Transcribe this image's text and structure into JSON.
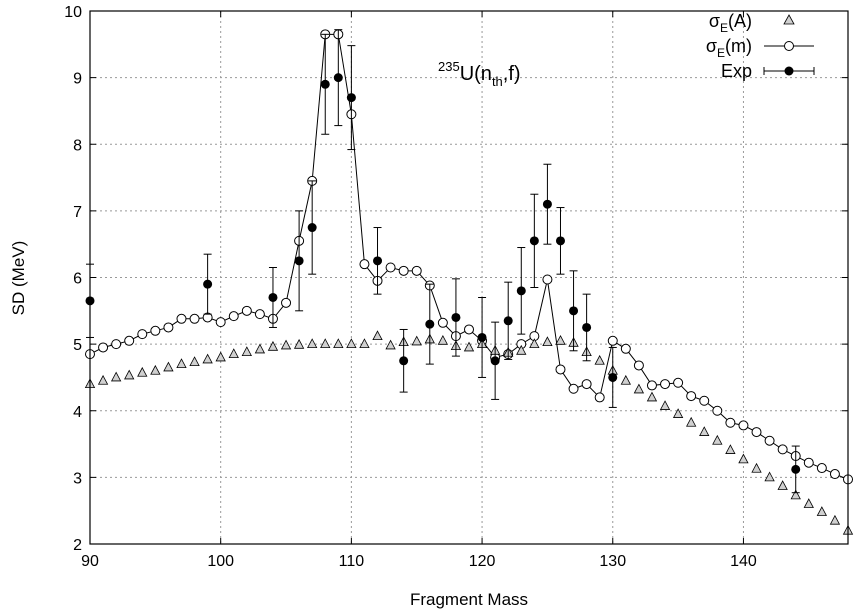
{
  "chart_data": {
    "type": "scatter",
    "xlabel": "Fragment Mass",
    "ylabel": "SD (MeV)",
    "xlim": [
      90,
      148
    ],
    "ylim": [
      2,
      10
    ],
    "x_ticks": [
      90,
      100,
      110,
      120,
      130,
      140
    ],
    "y_ticks": [
      2,
      3,
      4,
      5,
      6,
      7,
      8,
      9,
      10
    ],
    "grid": true,
    "legend_position": "top-right",
    "annotation": {
      "sup": "235",
      "base": "U(n",
      "sub": "th",
      "tail": ",f)"
    },
    "series": [
      {
        "name": "σE(A)",
        "legend": {
          "base": "σ",
          "sub": "E",
          "tail": "(A)"
        },
        "marker": "triangle",
        "color": "#888888",
        "line": false,
        "x": [
          90,
          91,
          92,
          93,
          94,
          95,
          96,
          97,
          98,
          99,
          100,
          101,
          102,
          103,
          104,
          105,
          106,
          107,
          108,
          109,
          110,
          111,
          112,
          113,
          114,
          115,
          116,
          117,
          118,
          119,
          120,
          121,
          122,
          123,
          124,
          125,
          126,
          127,
          128,
          129,
          130,
          131,
          132,
          133,
          134,
          135,
          136,
          137,
          138,
          139,
          140,
          141,
          142,
          143,
          144,
          145,
          146,
          147,
          148
        ],
        "y": [
          4.4,
          4.45,
          4.5,
          4.53,
          4.57,
          4.6,
          4.65,
          4.7,
          4.73,
          4.77,
          4.8,
          4.85,
          4.88,
          4.92,
          4.96,
          4.98,
          4.99,
          5.0,
          5.0,
          5.0,
          5.0,
          5.0,
          5.12,
          4.98,
          5.03,
          5.04,
          5.07,
          5.05,
          4.97,
          4.95,
          5.0,
          4.9,
          4.87,
          4.9,
          5.0,
          5.03,
          5.05,
          5.02,
          4.88,
          4.75,
          4.6,
          4.45,
          4.32,
          4.2,
          4.07,
          3.95,
          3.82,
          3.68,
          3.55,
          3.41,
          3.27,
          3.13,
          3.0,
          2.87,
          2.73,
          2.6,
          2.48,
          2.35,
          2.2
        ]
      },
      {
        "name": "σE(m)",
        "legend": {
          "base": "σ",
          "sub": "E",
          "tail": "(m)"
        },
        "marker": "open-circle",
        "color": "#000000",
        "line": true,
        "x": [
          90,
          91,
          92,
          93,
          94,
          95,
          96,
          97,
          98,
          99,
          100,
          101,
          102,
          103,
          104,
          105,
          106,
          107,
          108,
          109,
          110,
          111,
          112,
          113,
          114,
          115,
          116,
          117,
          118,
          119,
          120,
          121,
          122,
          123,
          124,
          125,
          126,
          127,
          128,
          129,
          130,
          131,
          132,
          133,
          134,
          135,
          136,
          137,
          138,
          139,
          140,
          141,
          142,
          143,
          144,
          145,
          146,
          147,
          148
        ],
        "y": [
          4.85,
          4.95,
          5.0,
          5.05,
          5.15,
          5.2,
          5.25,
          5.38,
          5.38,
          5.4,
          5.33,
          5.42,
          5.5,
          5.45,
          5.38,
          5.62,
          6.55,
          7.45,
          9.65,
          9.65,
          8.45,
          6.2,
          5.95,
          6.15,
          6.1,
          6.1,
          5.88,
          5.32,
          5.12,
          5.22,
          5.05,
          4.8,
          4.85,
          5.0,
          5.12,
          5.97,
          4.62,
          4.33,
          4.4,
          4.2,
          5.05,
          4.93,
          4.68,
          4.38,
          4.4,
          4.42,
          4.22,
          4.15,
          4.0,
          3.82,
          3.78,
          3.68,
          3.55,
          3.42,
          3.32,
          3.22,
          3.14,
          3.05,
          2.97
        ]
      },
      {
        "name": "Exp",
        "marker": "filled-circle",
        "color": "#000000",
        "line": false,
        "errorbars": true,
        "points": [
          {
            "x": 90,
            "y": 5.65,
            "err": 0.55
          },
          {
            "x": 99,
            "y": 5.9,
            "err": 0.45
          },
          {
            "x": 104,
            "y": 5.7,
            "err": 0.45
          },
          {
            "x": 106,
            "y": 6.25,
            "err": 0.75
          },
          {
            "x": 107,
            "y": 6.75,
            "err": 0.7
          },
          {
            "x": 108,
            "y": 8.9,
            "err": 0.75
          },
          {
            "x": 109,
            "y": 9.0,
            "err": 0.72
          },
          {
            "x": 110,
            "y": 8.7,
            "err": 0.78
          },
          {
            "x": 112,
            "y": 6.25,
            "err": 0.5
          },
          {
            "x": 114,
            "y": 4.75,
            "err": 0.47
          },
          {
            "x": 116,
            "y": 5.3,
            "err": 0.6
          },
          {
            "x": 118,
            "y": 5.4,
            "err": 0.58
          },
          {
            "x": 120,
            "y": 5.1,
            "err": 0.6
          },
          {
            "x": 121,
            "y": 4.75,
            "err": 0.58
          },
          {
            "x": 122,
            "y": 5.35,
            "err": 0.58
          },
          {
            "x": 123,
            "y": 5.8,
            "err": 0.65
          },
          {
            "x": 124,
            "y": 6.55,
            "err": 0.7
          },
          {
            "x": 125,
            "y": 7.1,
            "err": 0.6
          },
          {
            "x": 126,
            "y": 6.55,
            "err": 0.5
          },
          {
            "x": 127,
            "y": 5.5,
            "err": 0.6
          },
          {
            "x": 128,
            "y": 5.25,
            "err": 0.5
          },
          {
            "x": 130,
            "y": 4.5,
            "err": 0.45
          },
          {
            "x": 144,
            "y": 3.12,
            "err": 0.35
          }
        ]
      }
    ]
  }
}
